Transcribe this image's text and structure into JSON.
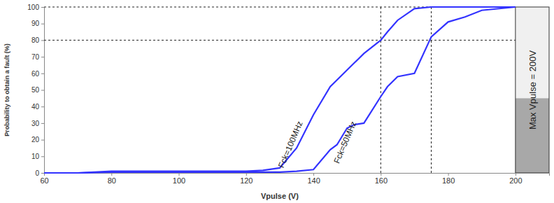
{
  "chart_data": {
    "type": "line",
    "x_label": "Vpulse (V)",
    "y_label": "Probability to obtain a fault (%)",
    "x": [
      60,
      70,
      80,
      90,
      100,
      110,
      120,
      125,
      130,
      135,
      140,
      145,
      147,
      150,
      152,
      155,
      160,
      162,
      165,
      170,
      175,
      180,
      185,
      190,
      200
    ],
    "series": [
      {
        "name": "Fck=100MHz",
        "color": "#3333ff",
        "values": [
          0,
          0,
          1,
          1,
          1,
          1,
          1,
          1.5,
          3,
          15,
          35,
          52,
          56,
          62,
          66,
          72,
          80,
          85,
          92,
          99,
          100,
          100,
          100,
          100,
          100
        ]
      },
      {
        "name": "Fck=50MHz",
        "color": "#3333ff",
        "values": [
          0,
          0,
          0.5,
          0.5,
          0.5,
          0.5,
          0.5,
          0.5,
          0.5,
          1,
          2,
          14,
          17,
          27,
          29,
          30,
          46,
          52,
          58,
          60,
          82,
          91,
          94,
          98,
          100
        ]
      }
    ],
    "xlim": [
      60,
      210
    ],
    "ylim": [
      0,
      100
    ],
    "xticks": [
      60,
      80,
      100,
      120,
      140,
      160,
      180,
      200
    ],
    "yticks": [
      0,
      10,
      20,
      30,
      40,
      50,
      60,
      70,
      80,
      90,
      100
    ],
    "grid": false,
    "reference_lines": {
      "x": [
        160,
        175
      ],
      "y": [
        80,
        100
      ]
    },
    "annotations": [
      {
        "text": "Max Vpulse = 200V",
        "x": 200
      }
    ]
  }
}
